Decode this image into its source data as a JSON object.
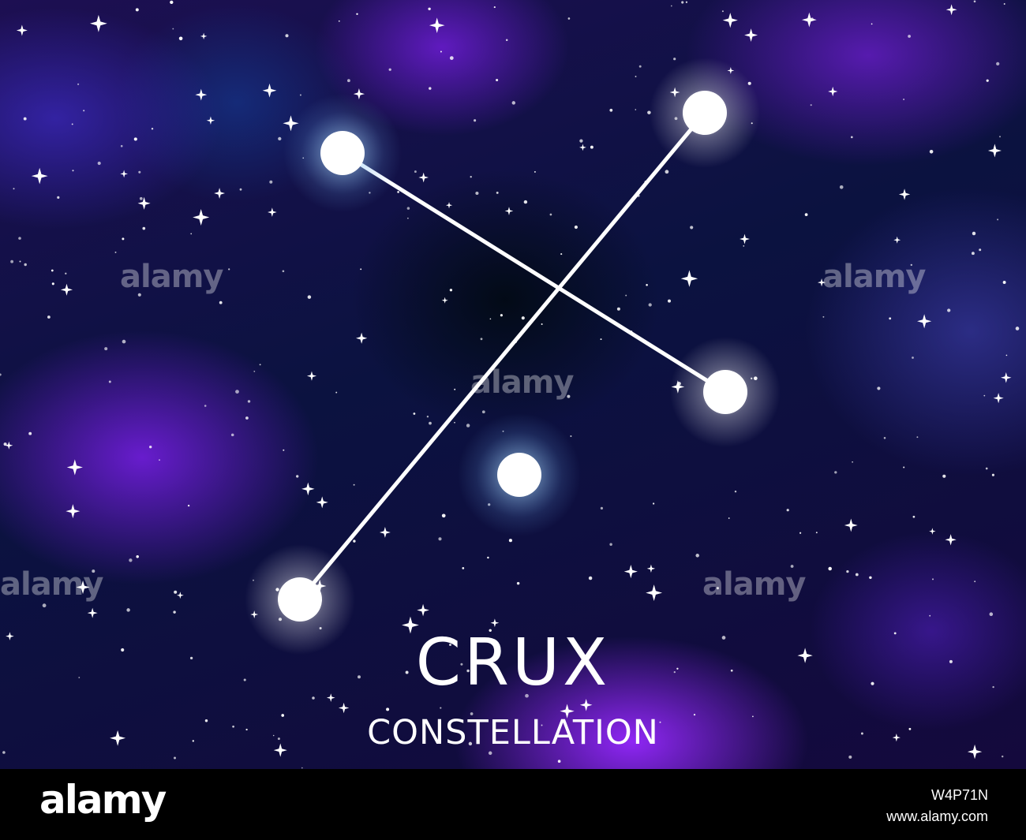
{
  "title": "CRUX",
  "subtitle": "CONSTELLATION",
  "watermark_text": "alamy",
  "footer": {
    "logo": "alamy",
    "image_id": "W4P71N",
    "site": "www.alamy.com"
  },
  "colors": {
    "sky_dark": "#020a14",
    "nebula_purple": "#7b2cf0",
    "nebula_blue": "#1d3a96",
    "star": "#ffffff",
    "halo": "#a8dcff",
    "footer_bg": "#000000"
  }
}
